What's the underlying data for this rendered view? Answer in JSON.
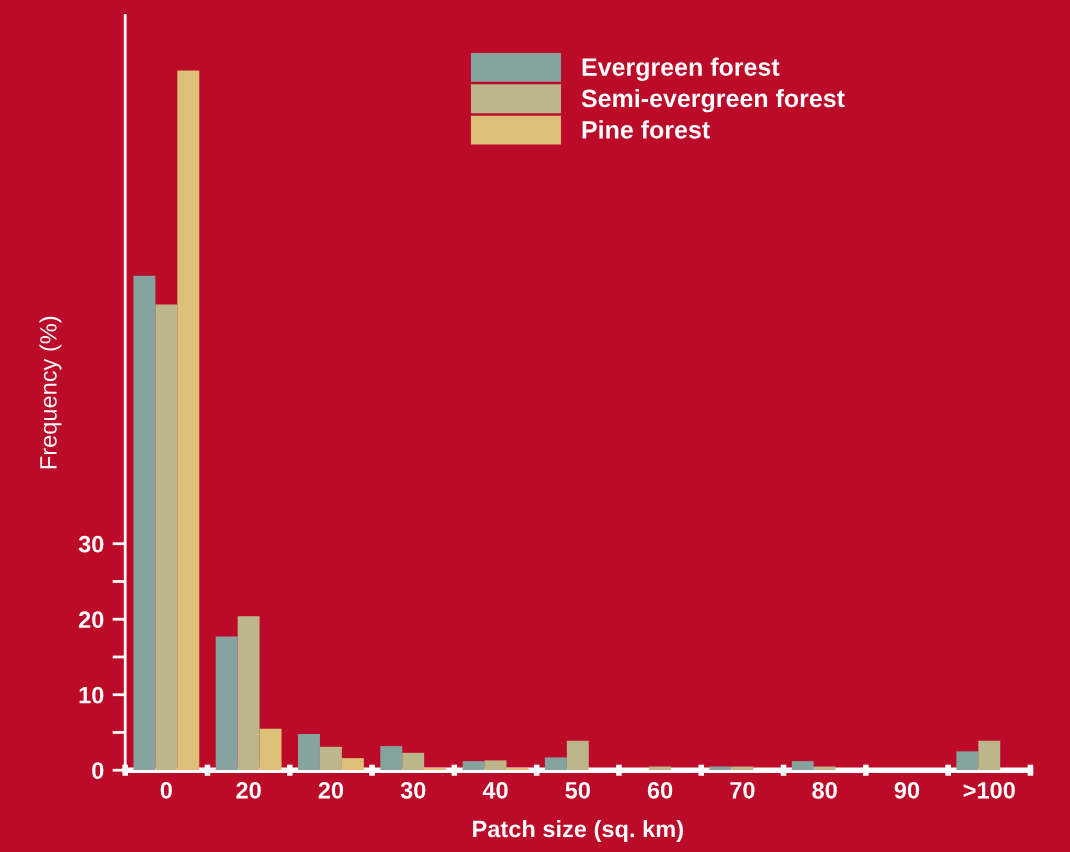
{
  "chart_data": {
    "type": "bar",
    "xlabel": "Patch size (sq. km)",
    "ylabel": "Frequency (%)",
    "categories": [
      "0",
      "20",
      "20",
      "30",
      "40",
      "50",
      "60",
      "70",
      "80",
      "90",
      ">100"
    ],
    "series": [
      {
        "name": "Evergreen forest",
        "color": "#86a3a0",
        "values": [
          65.5,
          17.7,
          4.8,
          3.2,
          1.2,
          1.7,
          0,
          0.5,
          1.2,
          0,
          2.5
        ]
      },
      {
        "name": "Semi-evergreen forest",
        "color": "#bcb68a",
        "values": [
          61.7,
          20.4,
          3.1,
          2.3,
          1.3,
          3.9,
          0.5,
          0.5,
          0.5,
          0,
          3.9
        ]
      },
      {
        "name": "Pine forest",
        "color": "#dcc078",
        "values": [
          92.7,
          5.5,
          1.6,
          0.3,
          0.3,
          0,
          0,
          0,
          0,
          0,
          0
        ]
      }
    ],
    "ylim": [
      0,
      100
    ],
    "yticks": [
      0,
      {
        "value": 5,
        "label": null
      },
      10,
      {
        "value": 15,
        "label": null
      },
      20,
      {
        "value": 25,
        "label": null
      },
      30
    ],
    "grid": false,
    "legend": "top right"
  }
}
